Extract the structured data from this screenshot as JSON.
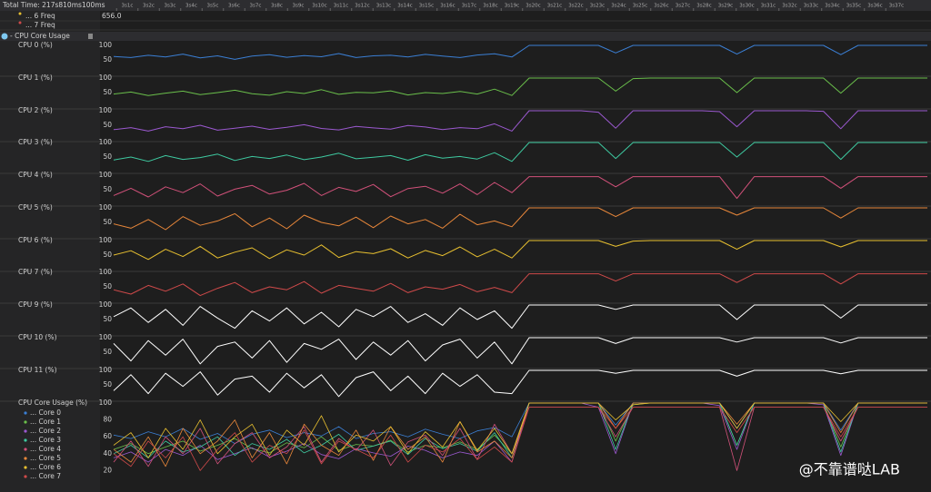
{
  "toolbar": {
    "total_time": "Total Time: 217s810ms",
    "zoom": "100ms"
  },
  "ruler": [
    "3s1c",
    "3s2c",
    "3s3c",
    "3s4c",
    "3s5c",
    "3s6c",
    "3s7c",
    "3s8c",
    "3s9c",
    "3s10c",
    "3s11c",
    "3s12c",
    "3s13c",
    "3s14c",
    "3s15c",
    "3s16c",
    "3s17c",
    "3s18c",
    "3s19c",
    "3s20c",
    "3s21c",
    "3s22c",
    "3s23c",
    "3s24c",
    "3s25c",
    "3s26c",
    "3s27c",
    "3s28c",
    "3s29c",
    "3s30c",
    "3s31c",
    "3s32c",
    "3s33c",
    "3s34c",
    "3s35c",
    "3s36c",
    "3s37c"
  ],
  "freq_rows": [
    {
      "label": "... 6 Freq",
      "color": "#e8c030",
      "value": "656.0"
    },
    {
      "label": "... 7 Freq",
      "color": "#d04a4a"
    }
  ],
  "group": {
    "title": "CPU Core Usage"
  },
  "tracks": [
    {
      "label": "CPU 0 (%)",
      "color": "#3b7fd4",
      "yticks": [
        100,
        50
      ],
      "values": [
        62,
        58,
        66,
        60,
        70,
        57,
        64,
        52,
        63,
        68,
        59,
        65,
        61,
        72,
        58,
        64,
        66,
        60,
        69,
        63,
        58,
        67,
        71,
        60,
        100,
        100,
        100,
        100,
        100,
        74,
        100,
        100,
        100,
        100,
        100,
        100,
        70,
        100,
        100,
        100,
        100,
        100,
        68,
        100,
        100,
        100,
        100,
        100
      ]
    },
    {
      "label": "CPU 1 (%)",
      "color": "#6abf4b",
      "yticks": [
        100,
        50
      ],
      "values": [
        45,
        52,
        40,
        48,
        55,
        43,
        50,
        58,
        46,
        41,
        53,
        47,
        60,
        44,
        51,
        49,
        56,
        42,
        50,
        47,
        54,
        45,
        62,
        40,
        100,
        100,
        100,
        100,
        100,
        55,
        98,
        100,
        100,
        100,
        100,
        100,
        50,
        100,
        100,
        100,
        100,
        100,
        48,
        100,
        100,
        100,
        100,
        100
      ]
    },
    {
      "label": "CPU 2 (%)",
      "color": "#9b59d0",
      "yticks": [
        100,
        50
      ],
      "values": [
        35,
        42,
        30,
        45,
        38,
        50,
        33,
        40,
        47,
        36,
        43,
        52,
        39,
        34,
        46,
        41,
        37,
        49,
        44,
        35,
        42,
        38,
        55,
        30,
        100,
        100,
        100,
        100,
        95,
        40,
        100,
        100,
        100,
        100,
        100,
        97,
        45,
        100,
        100,
        100,
        100,
        98,
        38,
        100,
        100,
        100,
        100,
        100
      ]
    },
    {
      "label": "CPU 3 (%)",
      "color": "#3ec9a0",
      "yticks": [
        100,
        50
      ],
      "values": [
        40,
        50,
        35,
        55,
        42,
        48,
        60,
        38,
        52,
        45,
        57,
        41,
        50,
        63,
        44,
        49,
        55,
        39,
        58,
        46,
        52,
        43,
        65,
        35,
        100,
        100,
        100,
        100,
        100,
        45,
        100,
        100,
        100,
        100,
        100,
        100,
        50,
        100,
        100,
        100,
        100,
        100,
        42,
        100,
        100,
        100,
        100,
        100
      ]
    },
    {
      "label": "CPU 4 (%)",
      "color": "#d2517a",
      "yticks": [
        100,
        50
      ],
      "values": [
        30,
        55,
        25,
        60,
        40,
        70,
        28,
        52,
        65,
        35,
        48,
        72,
        30,
        58,
        44,
        68,
        26,
        54,
        62,
        38,
        70,
        33,
        75,
        40,
        95,
        95,
        95,
        95,
        95,
        60,
        95,
        95,
        95,
        95,
        95,
        95,
        20,
        95,
        95,
        95,
        95,
        95,
        55,
        95,
        95,
        95,
        95,
        95
      ]
    },
    {
      "label": "CPU 5 (%)",
      "color": "#e8873a",
      "yticks": [
        100,
        50
      ],
      "values": [
        45,
        30,
        60,
        25,
        70,
        40,
        55,
        80,
        35,
        65,
        28,
        75,
        50,
        38,
        68,
        32,
        72,
        45,
        60,
        30,
        78,
        42,
        55,
        35,
        100,
        100,
        100,
        100,
        100,
        70,
        100,
        100,
        100,
        100,
        100,
        100,
        75,
        100,
        100,
        100,
        100,
        100,
        65,
        100,
        100,
        100,
        100,
        100
      ]
    },
    {
      "label": "CPU 6 (%)",
      "color": "#e8c030",
      "yticks": [
        100,
        50
      ],
      "values": [
        50,
        65,
        35,
        70,
        45,
        80,
        40,
        60,
        75,
        38,
        68,
        50,
        85,
        42,
        62,
        55,
        72,
        40,
        66,
        48,
        78,
        44,
        70,
        40,
        100,
        100,
        100,
        100,
        100,
        80,
        98,
        100,
        100,
        100,
        100,
        100,
        70,
        100,
        100,
        100,
        100,
        100,
        78,
        100,
        100,
        100,
        100,
        100
      ]
    },
    {
      "label": "CPU 7 (%)",
      "color": "#d04a4a",
      "yticks": [
        100,
        50
      ],
      "values": [
        40,
        25,
        55,
        35,
        60,
        20,
        45,
        65,
        30,
        50,
        40,
        68,
        28,
        55,
        45,
        35,
        62,
        30,
        50,
        42,
        58,
        33,
        48,
        30,
        95,
        95,
        95,
        95,
        95,
        70,
        95,
        95,
        95,
        95,
        95,
        95,
        65,
        95,
        95,
        95,
        95,
        95,
        60,
        95,
        95,
        95,
        95,
        95
      ]
    },
    {
      "label": "CPU 9 (%)",
      "color": "#ffffff",
      "yticks": [
        100,
        50
      ],
      "values": [
        60,
        90,
        40,
        85,
        30,
        95,
        55,
        20,
        80,
        45,
        90,
        35,
        75,
        25,
        85,
        60,
        95,
        40,
        70,
        30,
        90,
        50,
        80,
        20,
        100,
        100,
        100,
        100,
        100,
        85,
        100,
        100,
        100,
        100,
        100,
        100,
        50,
        100,
        100,
        100,
        100,
        100,
        55,
        100,
        100,
        100,
        100,
        100
      ]
    },
    {
      "label": "CPU 10 (%)",
      "color": "#ffffff",
      "yticks": [
        100,
        50
      ],
      "values": [
        80,
        20,
        90,
        40,
        95,
        10,
        70,
        85,
        30,
        90,
        15,
        80,
        60,
        95,
        25,
        85,
        40,
        90,
        20,
        75,
        95,
        30,
        85,
        10,
        100,
        100,
        100,
        100,
        100,
        80,
        100,
        100,
        100,
        100,
        100,
        100,
        85,
        100,
        100,
        100,
        100,
        100,
        82,
        100,
        100,
        100,
        100,
        100
      ]
    },
    {
      "label": "CPU 11 (%)",
      "color": "#ffffff",
      "yticks": [
        100,
        50
      ],
      "values": [
        30,
        85,
        20,
        90,
        45,
        95,
        15,
        70,
        80,
        25,
        90,
        40,
        85,
        10,
        75,
        95,
        30,
        80,
        20,
        90,
        45,
        85,
        25,
        20,
        100,
        100,
        100,
        100,
        100,
        90,
        100,
        100,
        100,
        100,
        100,
        100,
        80,
        100,
        100,
        100,
        100,
        100,
        88,
        100,
        100,
        100,
        100,
        100
      ]
    }
  ],
  "overview": {
    "label": "CPU Core Usage (%)",
    "yticks": [
      100,
      80,
      60,
      40,
      20
    ],
    "legend": [
      "... Core 0",
      "... Core 1",
      "... Core 2",
      "... Core 3",
      "... Core 4",
      "... Core 5",
      "... Core 6",
      "... Core 7"
    ]
  },
  "watermark": "@不靠谱哒LAB"
}
